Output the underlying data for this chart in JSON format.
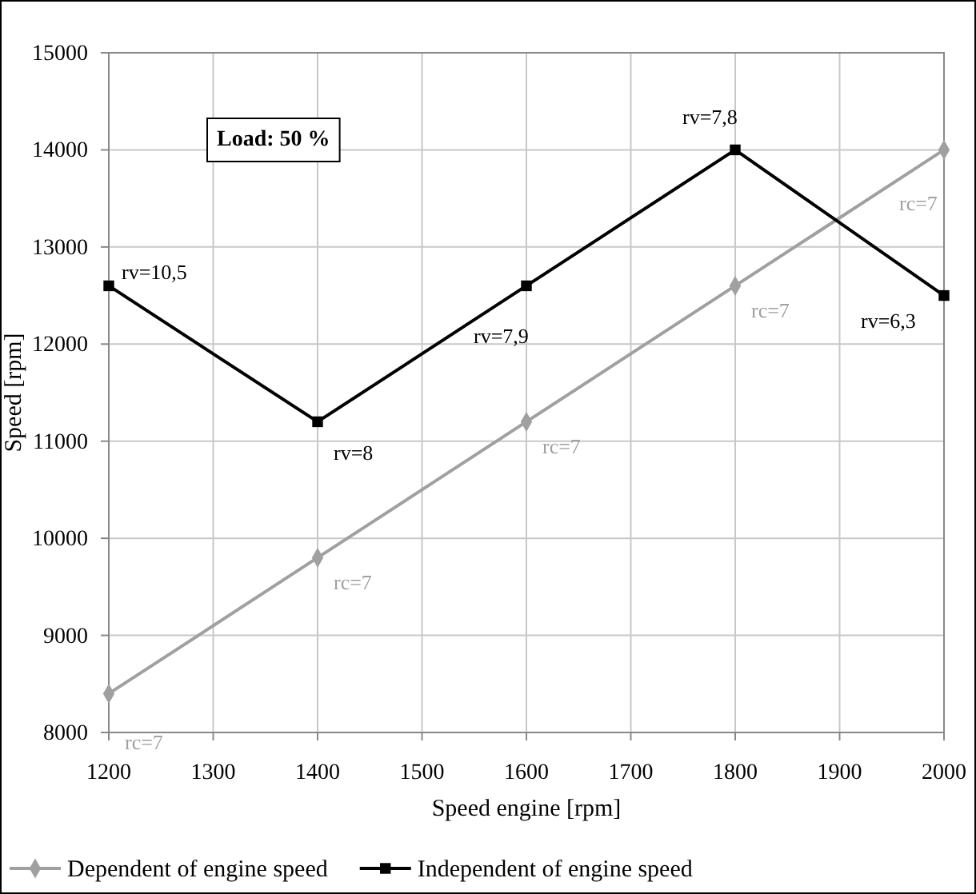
{
  "chart_data": {
    "type": "line",
    "xlabel": "Speed engine [rpm]",
    "ylabel": "Speed [rpm]",
    "x": [
      1200,
      1400,
      1600,
      1800,
      2000
    ],
    "series": [
      {
        "name": "Dependent of engine speed",
        "color": "#a0a0a0",
        "marker": "diamond",
        "values": [
          8400,
          9800,
          11200,
          12600,
          14000
        ]
      },
      {
        "name": "Independent of engine speed",
        "color": "#000000",
        "marker": "square",
        "values": [
          12600,
          11200,
          12600,
          14000,
          12500
        ]
      }
    ],
    "xlim": [
      1200,
      2000
    ],
    "xticks": [
      1200,
      1300,
      1400,
      1500,
      1600,
      1700,
      1800,
      1900,
      2000
    ],
    "ylim": [
      8000,
      15000
    ],
    "yticks": [
      8000,
      9000,
      10000,
      11000,
      12000,
      13000,
      14000,
      15000
    ],
    "grid": true,
    "legend": "bottom",
    "line_style": "solid",
    "annotations": [
      "Load: 50 %",
      {
        "text": "rv=10,5",
        "x": 1200,
        "y": 12600
      },
      {
        "text": "rv=8",
        "x": 1400,
        "y": 11200
      },
      {
        "text": "rv=7,9",
        "x": 1600,
        "y": 12600
      },
      {
        "text": "rv=7,8",
        "x": 1800,
        "y": 14000
      },
      {
        "text": "rv=6,3",
        "x": 2000,
        "y": 12500
      },
      {
        "text": "rc=7",
        "x": 1200,
        "y": 8400
      },
      {
        "text": "rc=7",
        "x": 1400,
        "y": 9800
      },
      {
        "text": "rc=7",
        "x": 1600,
        "y": 11200
      },
      {
        "text": "rc=7",
        "x": 1800,
        "y": 12600
      },
      {
        "text": "rc=7",
        "x": 2000,
        "y": 14000
      }
    ]
  }
}
